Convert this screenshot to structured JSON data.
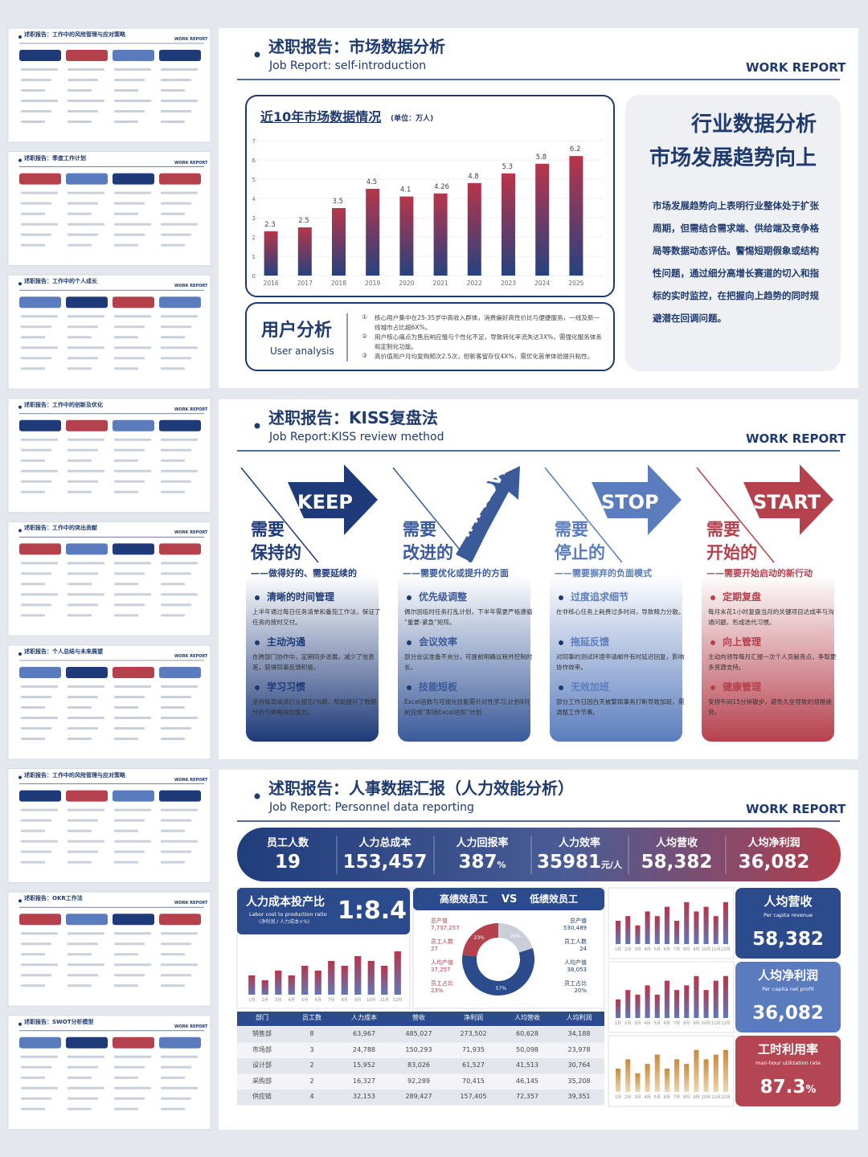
{
  "thumbnails": [
    {
      "title": "述职报告：工作中的风险管理与应对策略",
      "badge": "WORK REPORT"
    },
    {
      "title": "述职报告：季度工作计划",
      "badge": "WORK REPORT"
    },
    {
      "title": "述职报告：工作中的个人成长",
      "badge": "WORK REPORT"
    },
    {
      "title": "述职报告：工作中的创新及优化",
      "badge": "WORK REPORT"
    },
    {
      "title": "述职报告：工作中的突出贡献",
      "badge": "WORK REPORT"
    },
    {
      "title": "述职报告：个人总结与未来展望",
      "badge": "WORK REPORT"
    },
    {
      "title": "述职报告：工作中的风险管理与应对策略",
      "badge": "WORK REPORT"
    },
    {
      "title": "述职报告：OKR工作法",
      "badge": "WORK REPORT"
    },
    {
      "title": "述职报告：SWOT分析模型",
      "badge": "WORK REPORT"
    }
  ],
  "market_slide": {
    "title": "述职报告：市场数据分析",
    "subtitle": "Job Report: self-introduction",
    "badge": "WORK REPORT",
    "user_analysis": {
      "title": "用户分析",
      "subtitle": "User analysis",
      "items": [
        {
          "marker": "①",
          "text": "核心用户集中在25-35岁中高收入群体，消费偏好高性价比与便捷服务，一线及新一线城市占比超6X%。"
        },
        {
          "marker": "②",
          "text": "用户核心痛点为售后响应慢与个性化不足，导致转化率流失达3X%，需强化服务体系和定制化功能。"
        },
        {
          "marker": "③",
          "text": "高价值用户月均复购频次2.5次，但新客留存仅4X%，需优化首单体验提升粘性。"
        }
      ]
    },
    "side": {
      "title_lines": [
        "行业数据分析",
        "市场发展趋势向上"
      ],
      "paragraph": "市场发展趋势向上表明行业整体处于扩张周期，但需结合需求端、供给端及竞争格局等数据动态评估。警惕短期假象或结构性问题，通过细分高增长赛道的切入和指标的实时监控，在把握向上趋势的同时规避潜在回调问题。"
    }
  },
  "chart_data": {
    "type": "bar",
    "title": "近10年市场数据情况",
    "unit": "(单位：万人)",
    "categories": [
      "2016",
      "2017",
      "2018",
      "2019",
      "2020",
      "2021",
      "2022",
      "2023",
      "2024",
      "2025"
    ],
    "values": [
      2.3,
      2.5,
      3.5,
      4.5,
      4.1,
      4.26,
      4.8,
      5.3,
      5.8,
      6.2
    ],
    "ylim": [
      0,
      7
    ],
    "yticks": [
      0,
      1,
      2,
      3,
      4,
      5,
      6,
      7
    ],
    "grid": true,
    "colors": [
      "#b8354a",
      "#26427f"
    ]
  },
  "kiss_slide": {
    "title": "述职报告：KISS复盘法",
    "subtitle": "Job Report:KISS review method",
    "badge": "WORK REPORT",
    "columns": [
      {
        "word": "KEEP",
        "heading_lines": [
          "需要",
          "保持的"
        ],
        "subheading": "——做得好的、需要延续的",
        "color": "#1e3a78",
        "items": [
          {
            "title": "清晰的时间管理",
            "text": "上半年通过每日任务清单和番茄工作法，保证了任务的按时交付。"
          },
          {
            "title": "主动沟通",
            "text": "在跨部门协作中，定期同步进展，减少了信息差，获得同事反馈积极。"
          },
          {
            "title": "学习习惯",
            "text": "坚持每周阅读行业报告/书籍，帮助提升了数据分析与策略规划能力。"
          }
        ]
      },
      {
        "word": "IMPROVE",
        "heading_lines": [
          "需要",
          "改进的"
        ],
        "subheading": "——需要优化或提升的方面",
        "color": "#3a5a9a",
        "items": [
          {
            "title": "优先级调整",
            "text": "偶尔因临时任务打乱计划，下半年需更严格遵循“重要-紧急”矩阵。"
          },
          {
            "title": "会议效率",
            "text": "部分会议准备不充分，可提前明确议程并控制时长。"
          },
          {
            "title": "技能短板",
            "text": "Excel函数与可视化技能需针对性学习,计划9月前完成“职场Excel进阶”计划"
          }
        ]
      },
      {
        "word": "STOP",
        "heading_lines": [
          "需要",
          "停止的"
        ],
        "subheading": "——需要摒弃的负面模式",
        "color": "#5b7dbd",
        "items": [
          {
            "title": "过度追求细节",
            "text": "在非核心任务上耗费过多时间，导致精力分散。"
          },
          {
            "title": "拖延反馈",
            "text": "对同事的测试环境申请邮件有时延迟回复，影响协作效率。"
          },
          {
            "title": "无效加班",
            "text": "部分工作日因白天被繁琐事务打断导致加班，需调整工作节奏。"
          }
        ]
      },
      {
        "word": "START",
        "heading_lines": [
          "需要",
          "开始的"
        ],
        "subheading": "——需要开始启动的新行动",
        "color": "#b5414d",
        "items": [
          {
            "title": "定期复盘",
            "text": "每月末花1小时复盘当月的关键项目达成率与沟通问题，形成迭代习惯。"
          },
          {
            "title": "向上管理",
            "text": "主动向领导每月汇报一次个人贡献亮点，争取更多资源支持。"
          },
          {
            "title": "健康管理",
            "text": "安排午间15分钟散步，避免久坐导致的颈椎疲劳。"
          }
        ]
      }
    ]
  },
  "hr_slide": {
    "title": "述职报告：人事数据汇报（人力效能分析）",
    "subtitle": "Job Report: Personnel data reporting",
    "badge": "WORK REPORT",
    "kpis": [
      {
        "label": "员工人数",
        "value": "19"
      },
      {
        "label": "人力总成本",
        "value": "153,457"
      },
      {
        "label": "人力回报率",
        "value": "387",
        "unit": "%"
      },
      {
        "label": "人力效率",
        "value": "35981",
        "unit": "元/人"
      },
      {
        "label": "人均营收",
        "value": "58,382"
      },
      {
        "label": "人均净利润",
        "value": "36,082"
      }
    ],
    "ratio": {
      "title": "人力成本投产比",
      "subtitle": "Labor cost to production ratio",
      "note": "(净利润 / 人力成本×%)",
      "value": "1:8.4",
      "months": [
        "1月",
        "2月",
        "3月",
        "4月",
        "5月",
        "6月",
        "7月",
        "8月",
        "9月",
        "10月",
        "11月",
        "12月"
      ],
      "values": [
        4,
        3,
        5,
        4,
        6,
        5,
        7,
        6,
        8,
        7,
        6,
        9
      ],
      "ylim": [
        0,
        10
      ]
    },
    "performance": {
      "left_title": "高绩效员工",
      "vs": "VS",
      "right_title": "低绩效员工",
      "high": [
        {
          "label": "总产值",
          "value": "7,737,257"
        },
        {
          "label": "员工人数",
          "value": "27"
        },
        {
          "label": "人均产值",
          "value": "37,257"
        },
        {
          "label": "员工占比",
          "value": "23%"
        }
      ],
      "low": [
        {
          "label": "总产值",
          "value": "530,489"
        },
        {
          "label": "员工人数",
          "value": "24"
        },
        {
          "label": "人均产值",
          "value": "38,053"
        },
        {
          "label": "员工占比",
          "value": "20%"
        }
      ],
      "donut": {
        "values": [
          23,
          20,
          57
        ],
        "value_labels": [
          "23%",
          "20%",
          "57%"
        ],
        "colors": [
          "#b5414d",
          "#c9ced8",
          "#2c4b8c"
        ]
      }
    },
    "table": {
      "header": [
        "部门",
        "员工数",
        "人力成本",
        "营收",
        "净利润",
        "人均营收",
        "人均利润"
      ],
      "rows": [
        [
          "销售部",
          "8",
          "63,967",
          "485,027",
          "273,502",
          "60,628",
          "34,188"
        ],
        [
          "市场部",
          "3",
          "24,788",
          "150,293",
          "71,935",
          "50,098",
          "23,978"
        ],
        [
          "设计部",
          "2",
          "15,952",
          "83,026",
          "61,527",
          "41,513",
          "30,764"
        ],
        [
          "采购部",
          "2",
          "16,327",
          "92,289",
          "70,415",
          "46,145",
          "35,208"
        ],
        [
          "供应链",
          "4",
          "32,153",
          "289,427",
          "157,405",
          "72,357",
          "39,351"
        ]
      ]
    },
    "cards": [
      {
        "title": "人均营收",
        "subtitle": "Per capita revenue",
        "value": "58,382",
        "color": "#2c4b8c",
        "months": [
          "1月",
          "2月",
          "3月",
          "4月",
          "5月",
          "6月",
          "7月",
          "8月",
          "9月",
          "10月",
          "11月",
          "12月"
        ],
        "values": [
          5,
          6,
          4,
          7,
          6,
          8,
          5,
          9,
          7,
          8,
          6,
          9
        ],
        "ylim": [
          0,
          10
        ]
      },
      {
        "title": "人均净利润",
        "subtitle": "Per capita net profit",
        "value": "36,082",
        "color": "#5a7bbd",
        "months": [
          "1月",
          "2月",
          "3月",
          "4月",
          "5月",
          "6月",
          "7月",
          "8月",
          "9月",
          "10月",
          "11月",
          "12月"
        ],
        "values": [
          4,
          6,
          5,
          7,
          5,
          8,
          6,
          7,
          9,
          6,
          8,
          9
        ],
        "ylim": [
          0,
          10
        ]
      },
      {
        "title": "工时利用率",
        "subtitle": "man-hour utilization rate",
        "value": "87.3",
        "unit": "%",
        "color": "#b44552",
        "months": [
          "1月",
          "2月",
          "3月",
          "4月",
          "5月",
          "6月",
          "7月",
          "8月",
          "9月",
          "10月",
          "11月",
          "12月"
        ],
        "values": [
          5,
          7,
          4,
          6,
          8,
          5,
          7,
          6,
          9,
          7,
          8,
          9
        ],
        "ylim": [
          0,
          10
        ]
      }
    ]
  }
}
